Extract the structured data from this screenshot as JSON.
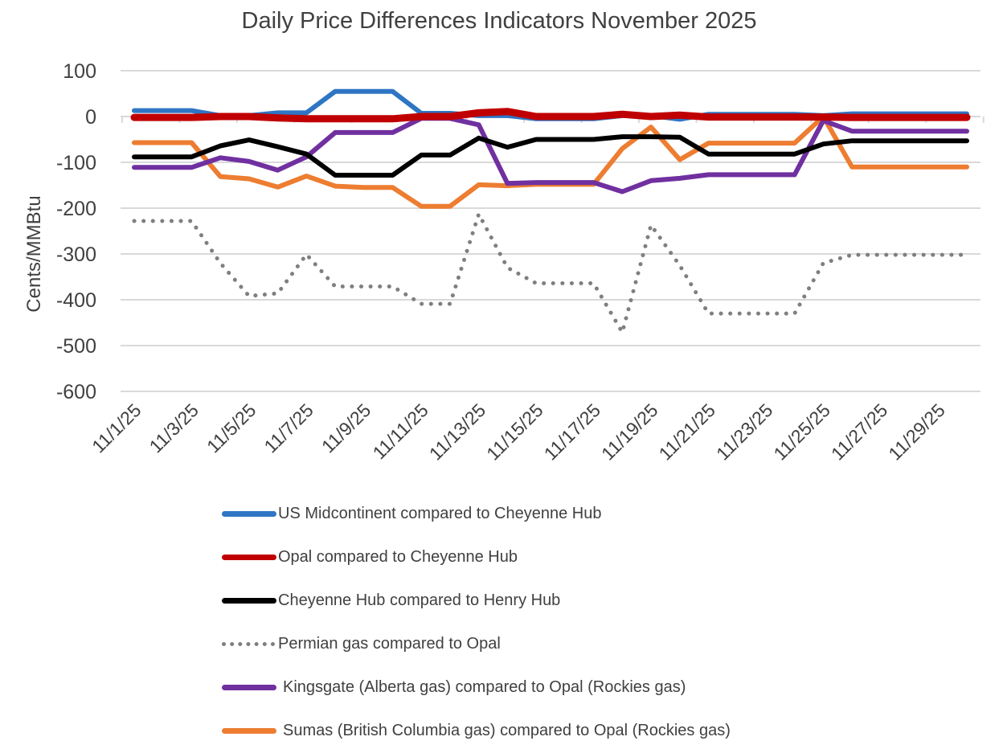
{
  "chart_data": {
    "type": "line",
    "title": "Daily Price Differences Indicators November 2025",
    "xlabel": "",
    "ylabel": "Cents/MMBtu",
    "ylim": [
      -600,
      100
    ],
    "yticks": [
      "100",
      "0",
      "-100",
      "-200",
      "-300",
      "-400",
      "-500",
      "-600"
    ],
    "ytick_values": [
      100,
      0,
      -100,
      -200,
      -300,
      -400,
      -500,
      -600
    ],
    "grid": true,
    "legend_position": "bottom",
    "x": [
      "11/1/25",
      "11/2/25",
      "11/3/25",
      "11/4/25",
      "11/5/25",
      "11/6/25",
      "11/7/25",
      "11/8/25",
      "11/9/25",
      "11/10/25",
      "11/11/25",
      "11/12/25",
      "11/13/25",
      "11/14/25",
      "11/15/25",
      "11/16/25",
      "11/17/25",
      "11/18/25",
      "11/19/25",
      "11/20/25",
      "11/21/25",
      "11/22/25",
      "11/23/25",
      "11/24/25",
      "11/25/25",
      "11/26/25",
      "11/27/25",
      "11/28/25",
      "11/29/25",
      "11/30/25"
    ],
    "xtick_labels": [
      "11/1/25",
      "11/3/25",
      "11/5/25",
      "11/7/25",
      "11/9/25",
      "11/11/25",
      "11/13/25",
      "11/15/25",
      "11/17/25",
      "11/19/25",
      "11/21/25",
      "11/23/25",
      "11/25/25",
      "11/27/25",
      "11/29/25"
    ],
    "series": [
      {
        "name": "US Midcontinent compared to Cheyenne Hub",
        "color": "#2e75c4",
        "style": "solid",
        "values": [
          13,
          13,
          13,
          2,
          2,
          8,
          8,
          55,
          55,
          55,
          7,
          7,
          2,
          2,
          -5,
          -5,
          -5,
          2,
          2,
          -6,
          5,
          5,
          5,
          5,
          2,
          6,
          6,
          6,
          6,
          6
        ]
      },
      {
        "name": "Opal compared to Cheyenne Hub",
        "color": "#c00000",
        "style": "solid",
        "values": [
          -2,
          -2,
          -2,
          0,
          0,
          -3,
          -5,
          -5,
          -5,
          -5,
          0,
          0,
          8,
          11,
          0,
          0,
          0,
          5,
          0,
          3,
          -1,
          -1,
          -1,
          -1,
          -1,
          -2,
          -2,
          -2,
          -2,
          -2
        ]
      },
      {
        "name": "Cheyenne Hub compared to Henry Hub",
        "color": "#000000",
        "style": "solid",
        "values": [
          -88,
          -88,
          -88,
          -64,
          -51,
          -66,
          -82,
          -128,
          -128,
          -128,
          -84,
          -84,
          -47,
          -67,
          -50,
          -50,
          -50,
          -44,
          -44,
          -45,
          -82,
          -82,
          -82,
          -82,
          -60,
          -53,
          -53,
          -53,
          -53,
          -53
        ]
      },
      {
        "name": "Permian gas compared to Opal",
        "color": "#7f7f7f",
        "style": "dotted",
        "values": [
          -228,
          -228,
          -228,
          -320,
          -392,
          -386,
          -301,
          -371,
          -371,
          -371,
          -409,
          -409,
          -213,
          -330,
          -364,
          -364,
          -364,
          -471,
          -237,
          -325,
          -430,
          -430,
          -430,
          -430,
          -320,
          -302,
          -302,
          -302,
          -302,
          -302
        ]
      },
      {
        "name": "Kingsgate (Alberta gas) compared to Opal (Rockies gas)",
        "color": "#7030a0",
        "style": "solid",
        "values": [
          -111,
          -111,
          -111,
          -90,
          -98,
          -117,
          -88,
          -35,
          -35,
          -35,
          -4,
          -4,
          -18,
          -146,
          -144,
          -144,
          -144,
          -164,
          -140,
          -135,
          -127,
          -127,
          -127,
          -127,
          -9,
          -32,
          -32,
          -32,
          -32,
          -32
        ]
      },
      {
        "name": "Sumas (British Columbia gas) compared to Opal (Rockies gas)",
        "color": "#ed7d31",
        "style": "solid",
        "values": [
          -57,
          -57,
          -57,
          -131,
          -136,
          -154,
          -130,
          -152,
          -155,
          -155,
          -196,
          -196,
          -149,
          -151,
          -148,
          -148,
          -148,
          -70,
          -23,
          -94,
          -58,
          -58,
          -58,
          -58,
          0,
          -110,
          -110,
          -110,
          -110,
          -110
        ]
      }
    ]
  }
}
